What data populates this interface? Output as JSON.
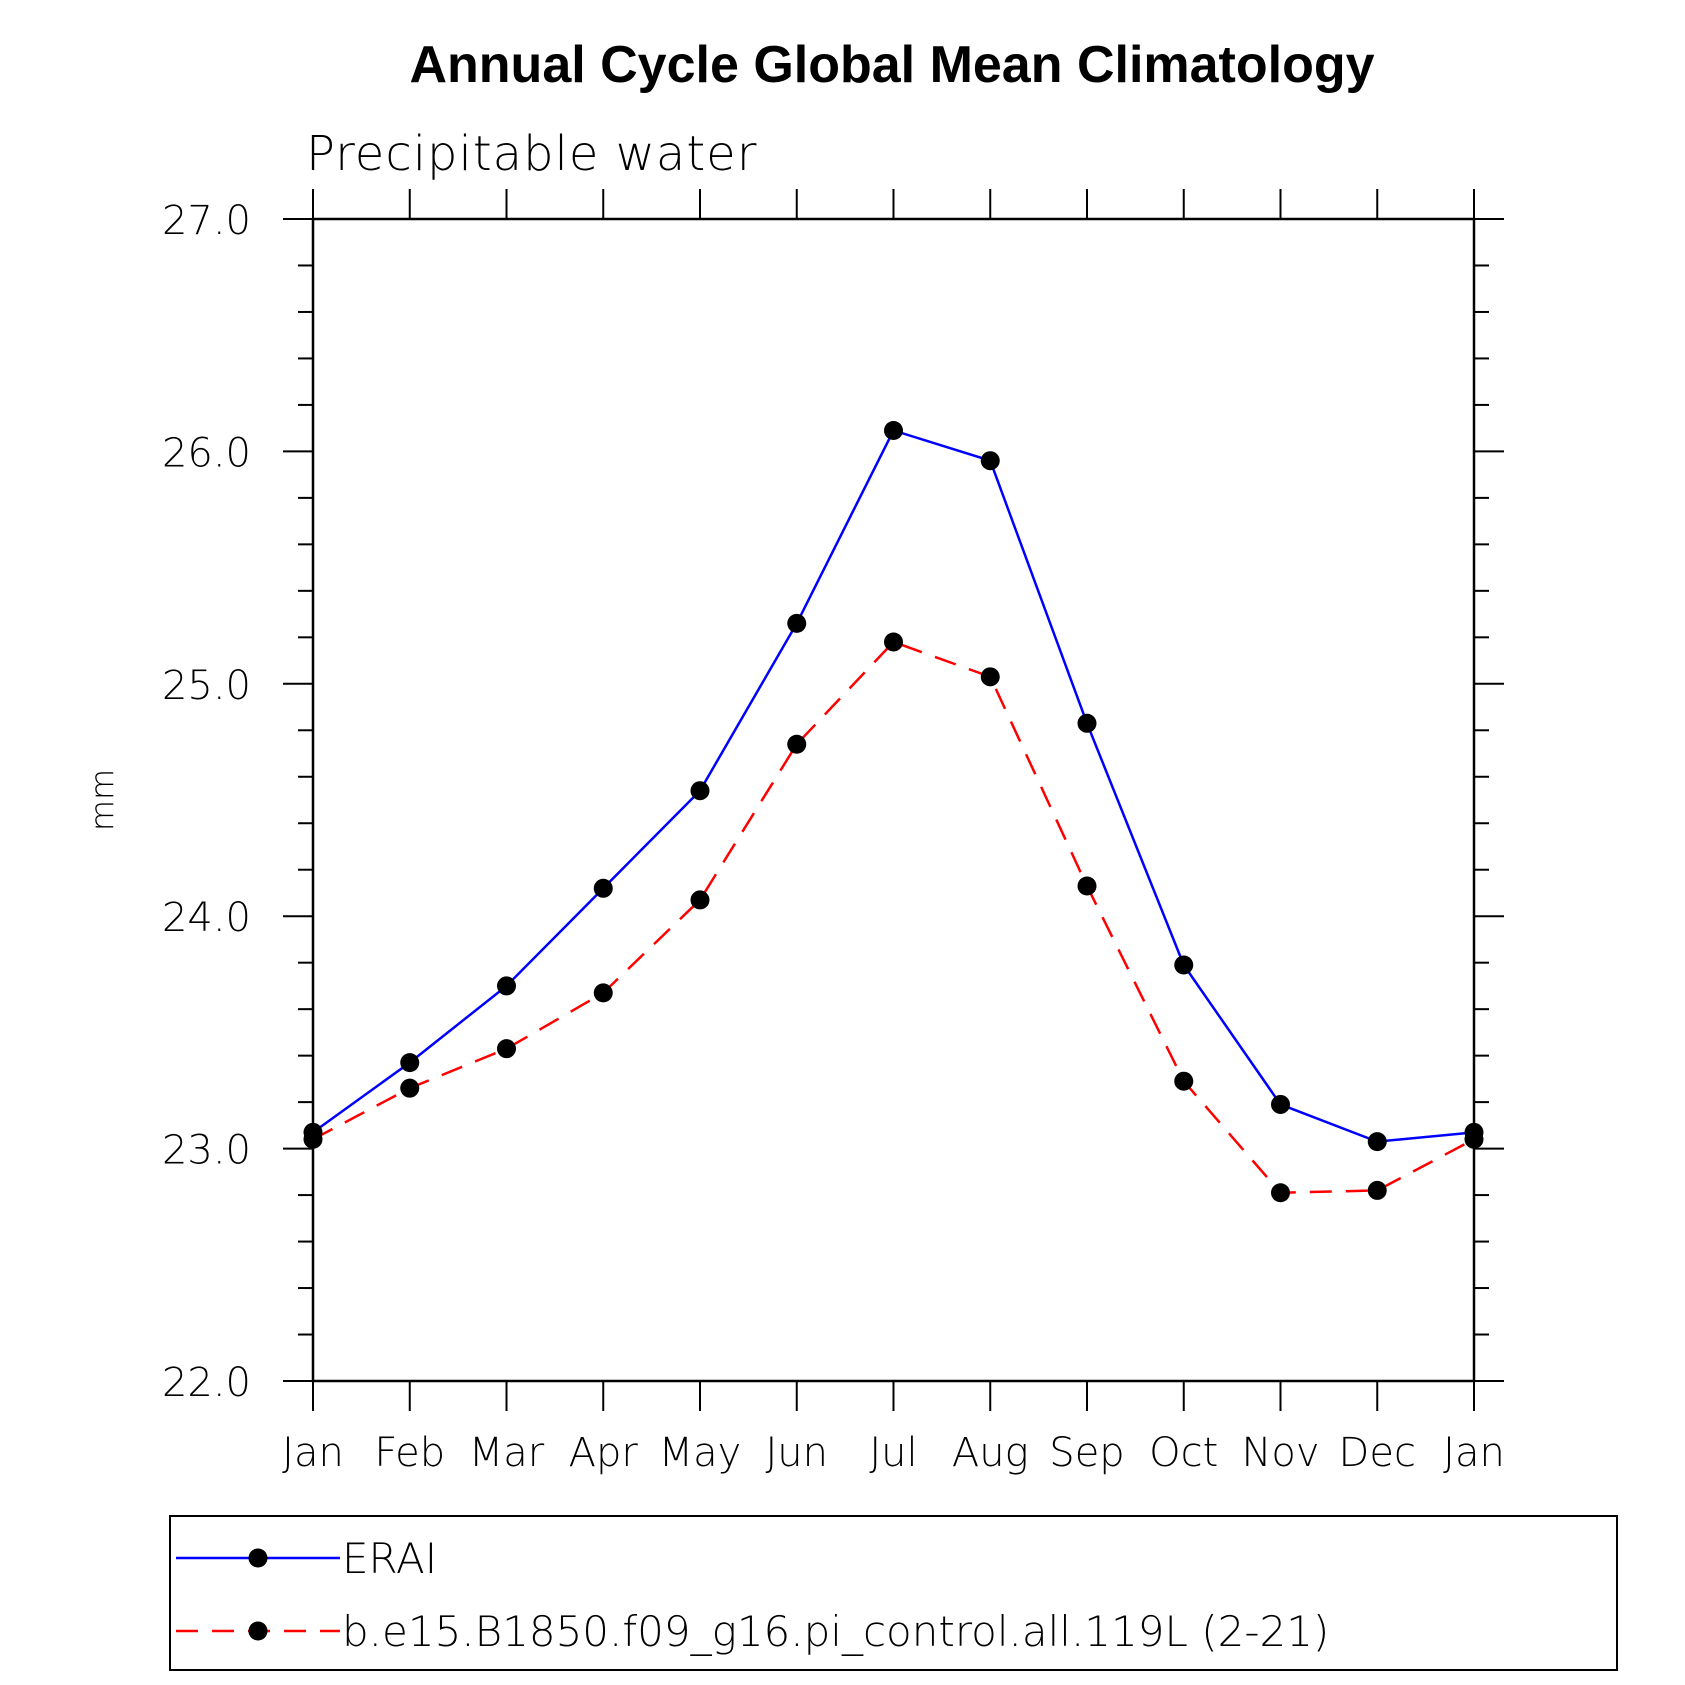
{
  "chart_data": {
    "type": "line",
    "title": "Annual Cycle Global Mean Climatology",
    "subtitle": "Precipitable water",
    "xlabel": "",
    "ylabel": "mm",
    "categories": [
      "Jan",
      "Feb",
      "Mar",
      "Apr",
      "May",
      "Jun",
      "Jul",
      "Aug",
      "Sep",
      "Oct",
      "Nov",
      "Dec",
      "Jan"
    ],
    "ylim": [
      22.0,
      27.0
    ],
    "yticks": [
      "22.0",
      "23.0",
      "24.0",
      "25.0",
      "26.0",
      "27.0"
    ],
    "y_minor_step": 0.2,
    "grid": false,
    "legend_position": "bottom",
    "series": [
      {
        "name": "ERAI",
        "color": "#0000ff",
        "line_style": "solid",
        "marker": "filled-circle",
        "values": [
          23.07,
          23.37,
          23.7,
          24.12,
          24.54,
          25.26,
          26.09,
          25.96,
          24.83,
          23.79,
          23.19,
          23.03,
          23.07
        ]
      },
      {
        "name": "b.e15.B1850.f09_g16.pi_control.all.119L (2-21)",
        "color": "#ff0000",
        "line_style": "dashed",
        "marker": "filled-circle",
        "values": [
          23.04,
          23.26,
          23.43,
          23.67,
          24.07,
          24.74,
          25.18,
          25.03,
          24.13,
          23.29,
          22.81,
          22.82,
          23.04
        ]
      }
    ]
  }
}
